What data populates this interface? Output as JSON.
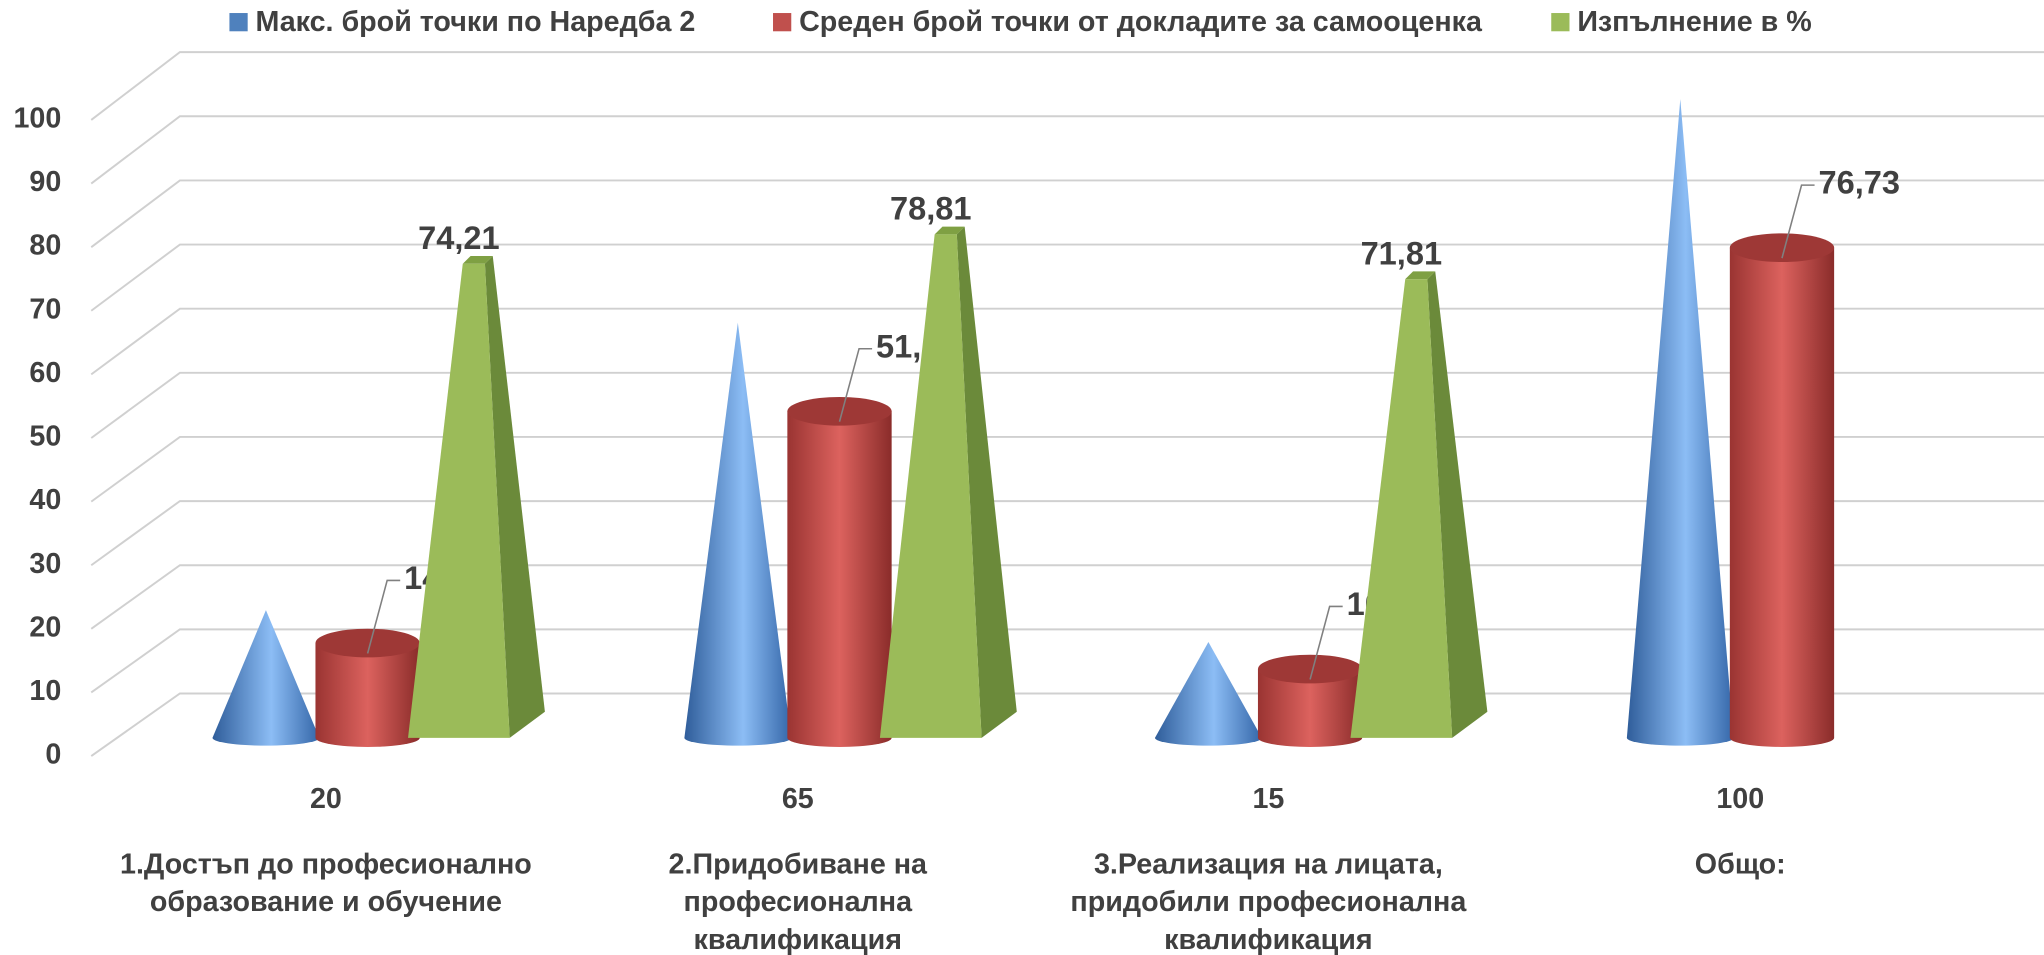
{
  "chart_data": {
    "type": "bar",
    "categories": [
      "1.Достъп до професионално образование и обучение",
      "2.Придобиване на професионална квалификация",
      "3.Реализация на лицата, придобили професионална квалификация",
      "Общо:"
    ],
    "series": [
      {
        "name": "Макс. брой точки по Наредба 2",
        "color": "#4f81bd",
        "values": [
          20,
          65,
          15,
          100
        ]
      },
      {
        "name": "Среден брой точки от докладите за самооценка",
        "color": "#c0504d",
        "values": [
          14.84,
          51.12,
          10.77,
          76.73
        ],
        "value_labels": [
          "14,84",
          "51,12",
          "10,77",
          "76,73"
        ]
      },
      {
        "name": "Изпълнение в %",
        "color": "#9bbb59",
        "values": [
          74.21,
          78.81,
          71.81,
          null
        ],
        "value_labels": [
          "74,21",
          "78,81",
          "71,81",
          null
        ]
      }
    ],
    "ylim": [
      0,
      100
    ],
    "yticks": [
      0,
      10,
      20,
      30,
      40,
      50,
      60,
      70,
      80,
      90,
      100
    ],
    "grid": true,
    "legend": "top"
  }
}
